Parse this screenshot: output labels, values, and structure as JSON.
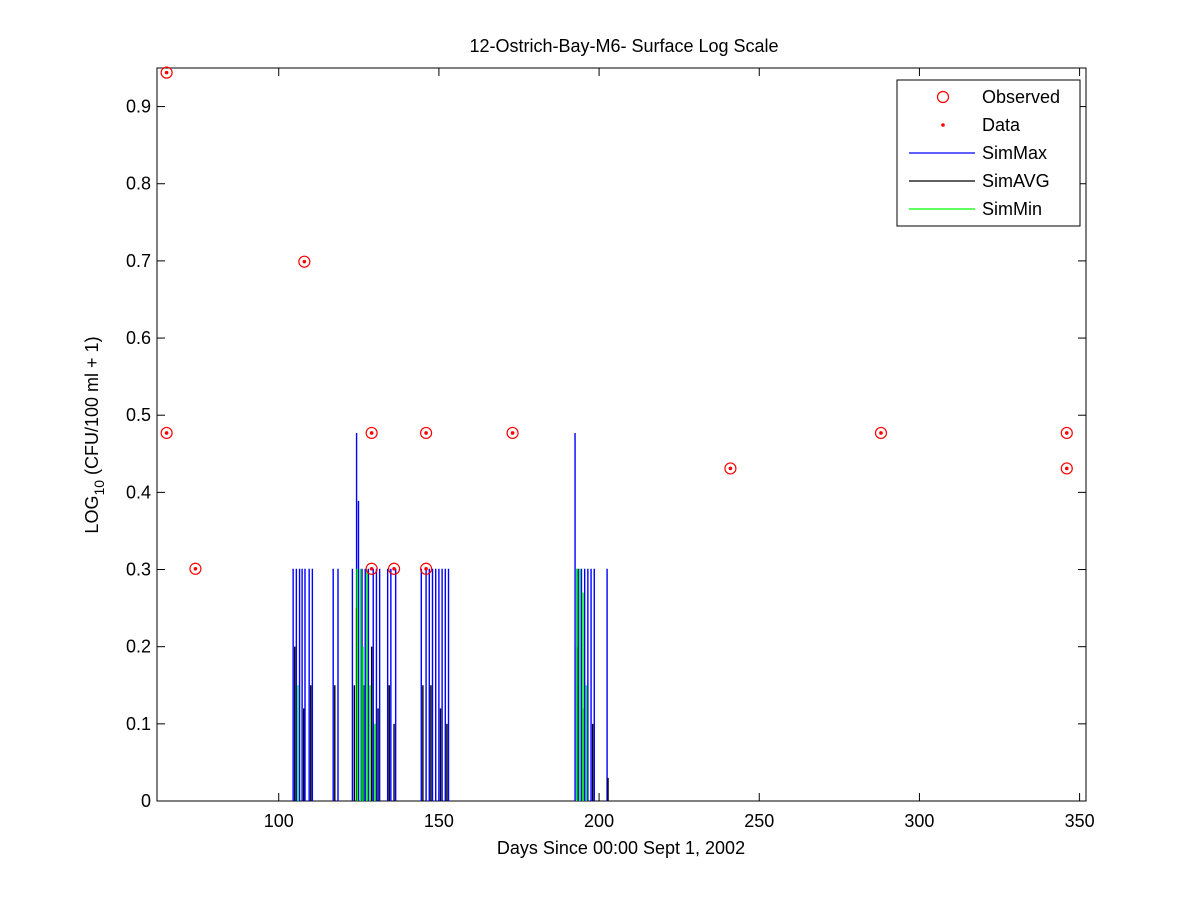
{
  "chart_data": {
    "type": "scatter",
    "title": "12-Ostrich-Bay-M6- Surface Log Scale",
    "xlabel": "Days Since 00:00 Sept 1, 2002",
    "ylabel": {
      "prefix": "LOG",
      "subscript": "10",
      "suffix": " (CFU/100 ml + 1)"
    },
    "xlim": [
      62,
      352
    ],
    "ylim": [
      0,
      0.95
    ],
    "x_ticks": [
      100,
      150,
      200,
      250,
      300,
      350
    ],
    "x_tick_labels": [
      "100",
      "150",
      "200",
      "250",
      "300",
      "350"
    ],
    "y_ticks": [
      0,
      0.1,
      0.2,
      0.3,
      0.4,
      0.5,
      0.6,
      0.7,
      0.8,
      0.9
    ],
    "y_tick_labels": [
      "0",
      "0.1",
      "0.2",
      "0.3",
      "0.4",
      "0.5",
      "0.6",
      "0.7",
      "0.8",
      "0.9"
    ],
    "grid": false,
    "legend_position": "top-right",
    "legend": [
      {
        "label": "Observed",
        "marker": "circle",
        "color": "#ff0000"
      },
      {
        "label": "Data",
        "marker": "dot",
        "color": "#ff0000"
      },
      {
        "label": "SimMax",
        "marker": "line",
        "color": "#0000ff"
      },
      {
        "label": "SimAVG",
        "marker": "line",
        "color": "#000000"
      },
      {
        "label": "SimMin",
        "marker": "line",
        "color": "#00ff00"
      }
    ],
    "observed": {
      "name": "Observed",
      "color": "#ff0000",
      "points": [
        {
          "x": 65,
          "y": 0.944
        },
        {
          "x": 65,
          "y": 0.477
        },
        {
          "x": 74,
          "y": 0.301
        },
        {
          "x": 108,
          "y": 0.699
        },
        {
          "x": 129,
          "y": 0.477
        },
        {
          "x": 129,
          "y": 0.301
        },
        {
          "x": 136,
          "y": 0.301
        },
        {
          "x": 146,
          "y": 0.477
        },
        {
          "x": 146,
          "y": 0.301
        },
        {
          "x": 173,
          "y": 0.477
        },
        {
          "x": 241,
          "y": 0.431
        },
        {
          "x": 288,
          "y": 0.477
        },
        {
          "x": 346,
          "y": 0.477
        },
        {
          "x": 346,
          "y": 0.431
        }
      ]
    },
    "sim_max": {
      "name": "SimMax",
      "color": "#0000ff",
      "spikes": [
        {
          "x": 104.5,
          "y": 0.301
        },
        {
          "x": 105.5,
          "y": 0.301
        },
        {
          "x": 106.5,
          "y": 0.301
        },
        {
          "x": 107.3,
          "y": 0.301
        },
        {
          "x": 108.2,
          "y": 0.301
        },
        {
          "x": 109.5,
          "y": 0.301
        },
        {
          "x": 110.5,
          "y": 0.301
        },
        {
          "x": 117,
          "y": 0.301
        },
        {
          "x": 118.5,
          "y": 0.301
        },
        {
          "x": 123,
          "y": 0.301
        },
        {
          "x": 124.3,
          "y": 0.477
        },
        {
          "x": 124.9,
          "y": 0.389
        },
        {
          "x": 126,
          "y": 0.301
        },
        {
          "x": 127,
          "y": 0.301
        },
        {
          "x": 128,
          "y": 0.301
        },
        {
          "x": 129.5,
          "y": 0.301
        },
        {
          "x": 130.5,
          "y": 0.301
        },
        {
          "x": 131.5,
          "y": 0.301
        },
        {
          "x": 134,
          "y": 0.301
        },
        {
          "x": 135,
          "y": 0.301
        },
        {
          "x": 136.5,
          "y": 0.301
        },
        {
          "x": 144.5,
          "y": 0.301
        },
        {
          "x": 146,
          "y": 0.301
        },
        {
          "x": 147,
          "y": 0.301
        },
        {
          "x": 148,
          "y": 0.301
        },
        {
          "x": 149,
          "y": 0.301
        },
        {
          "x": 150,
          "y": 0.301
        },
        {
          "x": 151,
          "y": 0.301
        },
        {
          "x": 152,
          "y": 0.301
        },
        {
          "x": 153,
          "y": 0.301
        },
        {
          "x": 192.5,
          "y": 0.477
        },
        {
          "x": 193.5,
          "y": 0.301
        },
        {
          "x": 194.5,
          "y": 0.301
        },
        {
          "x": 195.5,
          "y": 0.301
        },
        {
          "x": 196.5,
          "y": 0.301
        },
        {
          "x": 197.5,
          "y": 0.301
        },
        {
          "x": 198.5,
          "y": 0.301
        },
        {
          "x": 202.5,
          "y": 0.301
        }
      ]
    },
    "sim_avg": {
      "name": "SimAVG",
      "color": "#000000",
      "spikes": [
        {
          "x": 105,
          "y": 0.2
        },
        {
          "x": 107.8,
          "y": 0.12
        },
        {
          "x": 110,
          "y": 0.15
        },
        {
          "x": 117.5,
          "y": 0.15
        },
        {
          "x": 123.6,
          "y": 0.15
        },
        {
          "x": 124.3,
          "y": 0.25
        },
        {
          "x": 126.5,
          "y": 0.15
        },
        {
          "x": 129,
          "y": 0.2
        },
        {
          "x": 131,
          "y": 0.12
        },
        {
          "x": 134.5,
          "y": 0.15
        },
        {
          "x": 136,
          "y": 0.1
        },
        {
          "x": 145,
          "y": 0.15
        },
        {
          "x": 147.5,
          "y": 0.15
        },
        {
          "x": 150.5,
          "y": 0.12
        },
        {
          "x": 152.5,
          "y": 0.1
        },
        {
          "x": 193,
          "y": 0.2
        },
        {
          "x": 195,
          "y": 0.12
        },
        {
          "x": 198,
          "y": 0.1
        },
        {
          "x": 202.8,
          "y": 0.03
        }
      ]
    },
    "sim_min": {
      "name": "SimMin",
      "color": "#00ff00",
      "spikes": [
        {
          "x": 106,
          "y": 0.15
        },
        {
          "x": 124.5,
          "y": 0.301
        },
        {
          "x": 125.5,
          "y": 0.301
        },
        {
          "x": 126.3,
          "y": 0.2
        },
        {
          "x": 127.5,
          "y": 0.3
        },
        {
          "x": 128.5,
          "y": 0.15
        },
        {
          "x": 130,
          "y": 0.1
        },
        {
          "x": 193,
          "y": 0.301
        },
        {
          "x": 194,
          "y": 0.301
        },
        {
          "x": 195,
          "y": 0.27
        },
        {
          "x": 196,
          "y": 0.15
        }
      ]
    }
  }
}
